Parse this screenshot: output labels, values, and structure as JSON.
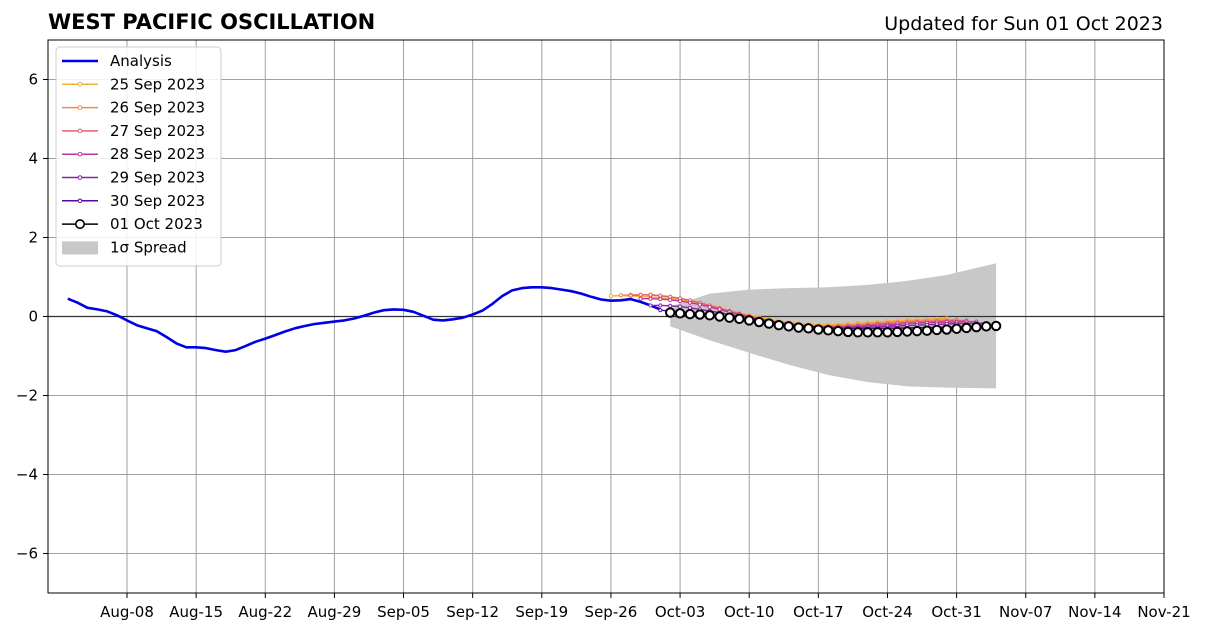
{
  "chart_data": {
    "type": "line",
    "title": "WEST PACIFIC OSCILLATION",
    "subtitle": "Updated for Sun 01 Oct 2023",
    "xlim": [
      "2023-07-31",
      "2023-11-21"
    ],
    "ylim": [
      -7,
      7
    ],
    "grid": true,
    "legend_position": "top-left",
    "x_tick_labels": [
      "Aug-08",
      "Aug-15",
      "Aug-22",
      "Aug-29",
      "Sep-05",
      "Sep-12",
      "Sep-19",
      "Sep-26",
      "Oct-03",
      "Oct-10",
      "Oct-17",
      "Oct-24",
      "Oct-31",
      "Nov-07",
      "Nov-14",
      "Nov-21"
    ],
    "y_ticks": [
      -6,
      -4,
      -2,
      0,
      2,
      4,
      6
    ],
    "y_tick_labels": [
      "−6",
      "−4",
      "−2",
      "0",
      "2",
      "4",
      "6"
    ],
    "series": [
      {
        "name": "Analysis",
        "color": "#0000e6",
        "markers": false,
        "x": [
          "2023-08-02",
          "2023-08-03",
          "2023-08-04",
          "2023-08-05",
          "2023-08-06",
          "2023-08-07",
          "2023-08-08",
          "2023-08-09",
          "2023-08-10",
          "2023-08-11",
          "2023-08-12",
          "2023-08-13",
          "2023-08-14",
          "2023-08-15",
          "2023-08-16",
          "2023-08-17",
          "2023-08-18",
          "2023-08-19",
          "2023-08-20",
          "2023-08-21",
          "2023-08-22",
          "2023-08-23",
          "2023-08-24",
          "2023-08-25",
          "2023-08-26",
          "2023-08-27",
          "2023-08-28",
          "2023-08-29",
          "2023-08-30",
          "2023-08-31",
          "2023-09-01",
          "2023-09-02",
          "2023-09-03",
          "2023-09-04",
          "2023-09-05",
          "2023-09-06",
          "2023-09-07",
          "2023-09-08",
          "2023-09-09",
          "2023-09-10",
          "2023-09-11",
          "2023-09-12",
          "2023-09-13",
          "2023-09-14",
          "2023-09-15",
          "2023-09-16",
          "2023-09-17",
          "2023-09-18",
          "2023-09-19",
          "2023-09-20",
          "2023-09-21",
          "2023-09-22",
          "2023-09-23",
          "2023-09-24",
          "2023-09-25",
          "2023-09-26",
          "2023-09-27",
          "2023-09-28",
          "2023-09-29",
          "2023-09-30",
          "2023-10-01"
        ],
        "y": [
          0.45,
          0.35,
          0.22,
          0.18,
          0.13,
          0.03,
          -0.1,
          -0.22,
          -0.3,
          -0.37,
          -0.52,
          -0.68,
          -0.78,
          -0.78,
          -0.8,
          -0.85,
          -0.89,
          -0.85,
          -0.75,
          -0.64,
          -0.56,
          -0.47,
          -0.38,
          -0.3,
          -0.24,
          -0.19,
          -0.16,
          -0.13,
          -0.1,
          -0.05,
          0.02,
          0.1,
          0.16,
          0.18,
          0.17,
          0.12,
          0.02,
          -0.08,
          -0.1,
          -0.07,
          -0.03,
          0.05,
          0.15,
          0.32,
          0.52,
          0.66,
          0.72,
          0.74,
          0.74,
          0.72,
          0.68,
          0.64,
          0.58,
          0.5,
          0.43,
          0.4,
          0.41,
          0.44,
          0.37,
          0.28,
          0.18
        ]
      },
      {
        "name": "25 Sep 2023",
        "color": "#f4b030",
        "markers": true,
        "x": [
          "2023-09-26",
          "2023-09-27",
          "2023-09-28",
          "2023-09-29",
          "2023-09-30",
          "2023-10-01",
          "2023-10-02",
          "2023-10-03",
          "2023-10-04",
          "2023-10-05",
          "2023-10-06",
          "2023-10-07",
          "2023-10-08",
          "2023-10-09",
          "2023-10-10",
          "2023-10-11",
          "2023-10-12",
          "2023-10-13",
          "2023-10-14",
          "2023-10-15",
          "2023-10-16",
          "2023-10-17",
          "2023-10-18",
          "2023-10-19",
          "2023-10-20",
          "2023-10-21",
          "2023-10-22",
          "2023-10-23",
          "2023-10-24",
          "2023-10-25",
          "2023-10-26",
          "2023-10-27",
          "2023-10-28",
          "2023-10-29",
          "2023-10-30"
        ],
        "y": [
          0.52,
          0.53,
          0.52,
          0.51,
          0.49,
          0.47,
          0.45,
          0.42,
          0.38,
          0.33,
          0.28,
          0.22,
          0.15,
          0.09,
          0.03,
          -0.02,
          -0.07,
          -0.11,
          -0.15,
          -0.18,
          -0.2,
          -0.21,
          -0.21,
          -0.2,
          -0.19,
          -0.17,
          -0.16,
          -0.14,
          -0.12,
          -0.11,
          -0.09,
          -0.08,
          -0.07,
          -0.06,
          -0.05
        ]
      },
      {
        "name": "26 Sep 2023",
        "color": "#f08c50",
        "markers": true,
        "x": [
          "2023-09-27",
          "2023-09-28",
          "2023-09-29",
          "2023-09-30",
          "2023-10-01",
          "2023-10-02",
          "2023-10-03",
          "2023-10-04",
          "2023-10-05",
          "2023-10-06",
          "2023-10-07",
          "2023-10-08",
          "2023-10-09",
          "2023-10-10",
          "2023-10-11",
          "2023-10-12",
          "2023-10-13",
          "2023-10-14",
          "2023-10-15",
          "2023-10-16",
          "2023-10-17",
          "2023-10-18",
          "2023-10-19",
          "2023-10-20",
          "2023-10-21",
          "2023-10-22",
          "2023-10-23",
          "2023-10-24",
          "2023-10-25",
          "2023-10-26",
          "2023-10-27",
          "2023-10-28",
          "2023-10-29",
          "2023-10-30",
          "2023-10-31"
        ],
        "y": [
          0.54,
          0.55,
          0.55,
          0.54,
          0.52,
          0.49,
          0.45,
          0.4,
          0.34,
          0.27,
          0.2,
          0.13,
          0.06,
          0.0,
          -0.05,
          -0.1,
          -0.14,
          -0.18,
          -0.21,
          -0.23,
          -0.24,
          -0.24,
          -0.23,
          -0.22,
          -0.2,
          -0.19,
          -0.17,
          -0.15,
          -0.14,
          -0.12,
          -0.11,
          -0.1,
          -0.09,
          -0.08,
          -0.08
        ]
      },
      {
        "name": "27 Sep 2023",
        "color": "#e06070",
        "markers": true,
        "x": [
          "2023-09-28",
          "2023-09-29",
          "2023-09-30",
          "2023-10-01",
          "2023-10-02",
          "2023-10-03",
          "2023-10-04",
          "2023-10-05",
          "2023-10-06",
          "2023-10-07",
          "2023-10-08",
          "2023-10-09",
          "2023-10-10",
          "2023-10-11",
          "2023-10-12",
          "2023-10-13",
          "2023-10-14",
          "2023-10-15",
          "2023-10-16",
          "2023-10-17",
          "2023-10-18",
          "2023-10-19",
          "2023-10-20",
          "2023-10-21",
          "2023-10-22",
          "2023-10-23",
          "2023-10-24",
          "2023-10-25",
          "2023-10-26",
          "2023-10-27",
          "2023-10-28",
          "2023-10-29",
          "2023-10-30",
          "2023-10-31",
          "2023-11-01"
        ],
        "y": [
          0.53,
          0.55,
          0.55,
          0.53,
          0.5,
          0.46,
          0.41,
          0.35,
          0.28,
          0.21,
          0.14,
          0.07,
          0.01,
          -0.05,
          -0.1,
          -0.14,
          -0.18,
          -0.21,
          -0.23,
          -0.25,
          -0.25,
          -0.25,
          -0.24,
          -0.23,
          -0.21,
          -0.19,
          -0.18,
          -0.16,
          -0.15,
          -0.14,
          -0.13,
          -0.12,
          -0.11,
          -0.1,
          -0.1
        ]
      },
      {
        "name": "28 Sep 2023",
        "color": "#b83a98",
        "markers": true,
        "x": [
          "2023-09-29",
          "2023-09-30",
          "2023-10-01",
          "2023-10-02",
          "2023-10-03",
          "2023-10-04",
          "2023-10-05",
          "2023-10-06",
          "2023-10-07",
          "2023-10-08",
          "2023-10-09",
          "2023-10-10",
          "2023-10-11",
          "2023-10-12",
          "2023-10-13",
          "2023-10-14",
          "2023-10-15",
          "2023-10-16",
          "2023-10-17",
          "2023-10-18",
          "2023-10-19",
          "2023-10-20",
          "2023-10-21",
          "2023-10-22",
          "2023-10-23",
          "2023-10-24",
          "2023-10-25",
          "2023-10-26",
          "2023-10-27",
          "2023-10-28",
          "2023-10-29",
          "2023-10-30",
          "2023-10-31",
          "2023-11-01",
          "2023-11-02"
        ],
        "y": [
          0.45,
          0.45,
          0.44,
          0.42,
          0.39,
          0.35,
          0.3,
          0.24,
          0.18,
          0.11,
          0.05,
          -0.01,
          -0.06,
          -0.11,
          -0.15,
          -0.19,
          -0.22,
          -0.24,
          -0.26,
          -0.27,
          -0.27,
          -0.26,
          -0.25,
          -0.24,
          -0.22,
          -0.21,
          -0.2,
          -0.18,
          -0.17,
          -0.16,
          -0.15,
          -0.14,
          -0.14,
          -0.13,
          -0.13
        ]
      },
      {
        "name": "29 Sep 2023",
        "color": "#8a22a8",
        "markers": true,
        "x": [
          "2023-09-30",
          "2023-10-01",
          "2023-10-02",
          "2023-10-03",
          "2023-10-04",
          "2023-10-05",
          "2023-10-06",
          "2023-10-07",
          "2023-10-08",
          "2023-10-09",
          "2023-10-10",
          "2023-10-11",
          "2023-10-12",
          "2023-10-13",
          "2023-10-14",
          "2023-10-15",
          "2023-10-16",
          "2023-10-17",
          "2023-10-18",
          "2023-10-19",
          "2023-10-20",
          "2023-10-21",
          "2023-10-22",
          "2023-10-23",
          "2023-10-24",
          "2023-10-25",
          "2023-10-26",
          "2023-10-27",
          "2023-10-28",
          "2023-10-29",
          "2023-10-30",
          "2023-10-31",
          "2023-11-01",
          "2023-11-02",
          "2023-11-03"
        ],
        "y": [
          0.28,
          0.28,
          0.27,
          0.25,
          0.22,
          0.18,
          0.14,
          0.1,
          0.05,
          0.01,
          -0.04,
          -0.08,
          -0.12,
          -0.16,
          -0.19,
          -0.22,
          -0.25,
          -0.27,
          -0.28,
          -0.29,
          -0.29,
          -0.28,
          -0.27,
          -0.26,
          -0.25,
          -0.24,
          -0.23,
          -0.22,
          -0.21,
          -0.2,
          -0.19,
          -0.18,
          -0.18,
          -0.17,
          -0.17
        ]
      },
      {
        "name": "30 Sep 2023",
        "color": "#5a0a9a",
        "markers": true,
        "x": [
          "2023-10-01",
          "2023-10-02",
          "2023-10-03",
          "2023-10-04",
          "2023-10-05",
          "2023-10-06",
          "2023-10-07",
          "2023-10-08",
          "2023-10-09",
          "2023-10-10",
          "2023-10-11",
          "2023-10-12",
          "2023-10-13",
          "2023-10-14",
          "2023-10-15",
          "2023-10-16",
          "2023-10-17",
          "2023-10-18",
          "2023-10-19",
          "2023-10-20",
          "2023-10-21",
          "2023-10-22",
          "2023-10-23",
          "2023-10-24",
          "2023-10-25",
          "2023-10-26",
          "2023-10-27",
          "2023-10-28",
          "2023-10-29",
          "2023-10-30",
          "2023-10-31",
          "2023-11-01",
          "2023-11-02",
          "2023-11-03",
          "2023-11-04"
        ],
        "y": [
          0.16,
          0.14,
          0.12,
          0.1,
          0.07,
          0.04,
          0.01,
          -0.02,
          -0.05,
          -0.08,
          -0.11,
          -0.14,
          -0.17,
          -0.2,
          -0.23,
          -0.25,
          -0.27,
          -0.29,
          -0.3,
          -0.31,
          -0.31,
          -0.31,
          -0.3,
          -0.3,
          -0.29,
          -0.29,
          -0.28,
          -0.28,
          -0.27,
          -0.27,
          -0.26,
          -0.26,
          -0.25,
          -0.25,
          -0.25
        ]
      },
      {
        "name": "01 Oct 2023",
        "color": "#000000",
        "markers": true,
        "marker_style": "open-circle",
        "x": [
          "2023-10-02",
          "2023-10-03",
          "2023-10-04",
          "2023-10-05",
          "2023-10-06",
          "2023-10-07",
          "2023-10-08",
          "2023-10-09",
          "2023-10-10",
          "2023-10-11",
          "2023-10-12",
          "2023-10-13",
          "2023-10-14",
          "2023-10-15",
          "2023-10-16",
          "2023-10-17",
          "2023-10-18",
          "2023-10-19",
          "2023-10-20",
          "2023-10-21",
          "2023-10-22",
          "2023-10-23",
          "2023-10-24",
          "2023-10-25",
          "2023-10-26",
          "2023-10-27",
          "2023-10-28",
          "2023-10-29",
          "2023-10-30",
          "2023-10-31",
          "2023-11-01",
          "2023-11-02",
          "2023-11-03",
          "2023-11-04"
        ],
        "y": [
          0.1,
          0.08,
          0.06,
          0.05,
          0.03,
          0.0,
          -0.03,
          -0.06,
          -0.1,
          -0.14,
          -0.18,
          -0.22,
          -0.25,
          -0.28,
          -0.3,
          -0.33,
          -0.35,
          -0.37,
          -0.39,
          -0.4,
          -0.4,
          -0.4,
          -0.4,
          -0.39,
          -0.38,
          -0.37,
          -0.36,
          -0.34,
          -0.33,
          -0.31,
          -0.29,
          -0.27,
          -0.25,
          -0.24
        ]
      }
    ],
    "spread": {
      "name": "1σ Spread",
      "color": "#c8c8c8",
      "x": [
        "2023-10-02",
        "2023-10-06",
        "2023-10-10",
        "2023-10-14",
        "2023-10-18",
        "2023-10-22",
        "2023-10-26",
        "2023-10-30",
        "2023-11-04"
      ],
      "upper": [
        0.25,
        0.58,
        0.68,
        0.72,
        0.74,
        0.8,
        0.9,
        1.05,
        1.35
      ],
      "lower": [
        -0.25,
        -0.6,
        -0.92,
        -1.22,
        -1.48,
        -1.66,
        -1.77,
        -1.8,
        -1.82
      ]
    }
  }
}
